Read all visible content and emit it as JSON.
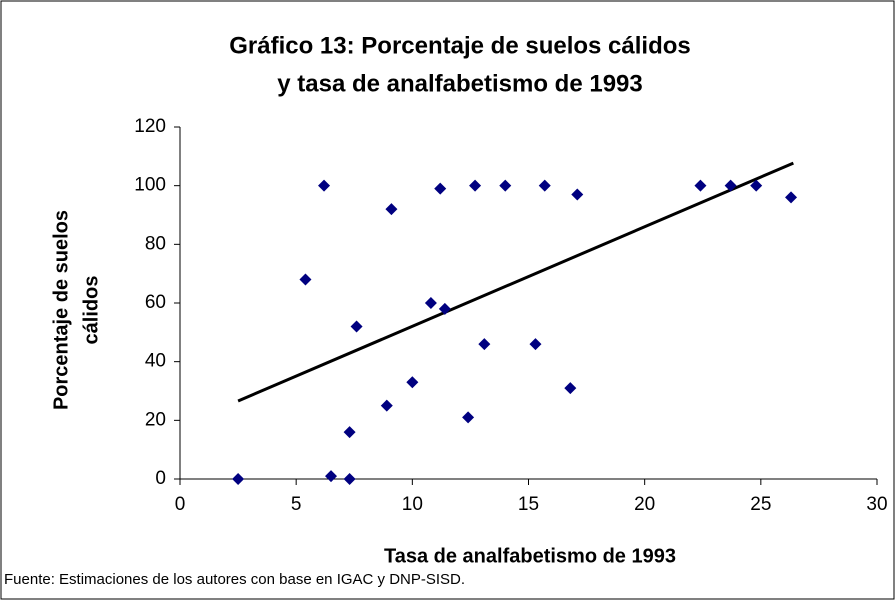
{
  "chart_data": {
    "type": "scatter",
    "title": [
      "Gráfico 13: Porcentaje de suelos cálidos",
      "y tasa de analfabetismo de 1993"
    ],
    "x_label": "Tasa de analfabetismo de 1993",
    "y_label": [
      "Porcentaje de suelos",
      "cálidos"
    ],
    "note": "Fuente: Estimaciones de los autores con base en IGAC y DNP-SISD.",
    "xlim": [
      0,
      30
    ],
    "xticks": [
      0,
      5,
      10,
      15,
      20,
      25,
      30
    ],
    "ylim": [
      0,
      120
    ],
    "yticks": [
      0,
      20,
      40,
      60,
      80,
      100,
      120
    ],
    "color": "#000080",
    "x": [
      2.5,
      5.4,
      6.2,
      6.5,
      7.3,
      7.3,
      7.6,
      8.9,
      9.1,
      10.0,
      10.8,
      11.2,
      11.4,
      12.4,
      12.7,
      13.1,
      14.0,
      15.3,
      15.7,
      16.8,
      17.1,
      22.4,
      23.7,
      24.8,
      26.3
    ],
    "values": [
      0,
      68,
      100,
      1,
      0,
      16,
      52,
      25,
      92,
      33,
      60,
      99,
      58,
      21,
      100,
      46,
      100,
      46,
      100,
      31,
      97,
      100,
      100,
      100,
      96
    ],
    "trendline": {
      "color": "#000000",
      "x": [
        2.5,
        26.4
      ],
      "values": [
        26.6,
        107.7
      ]
    }
  }
}
